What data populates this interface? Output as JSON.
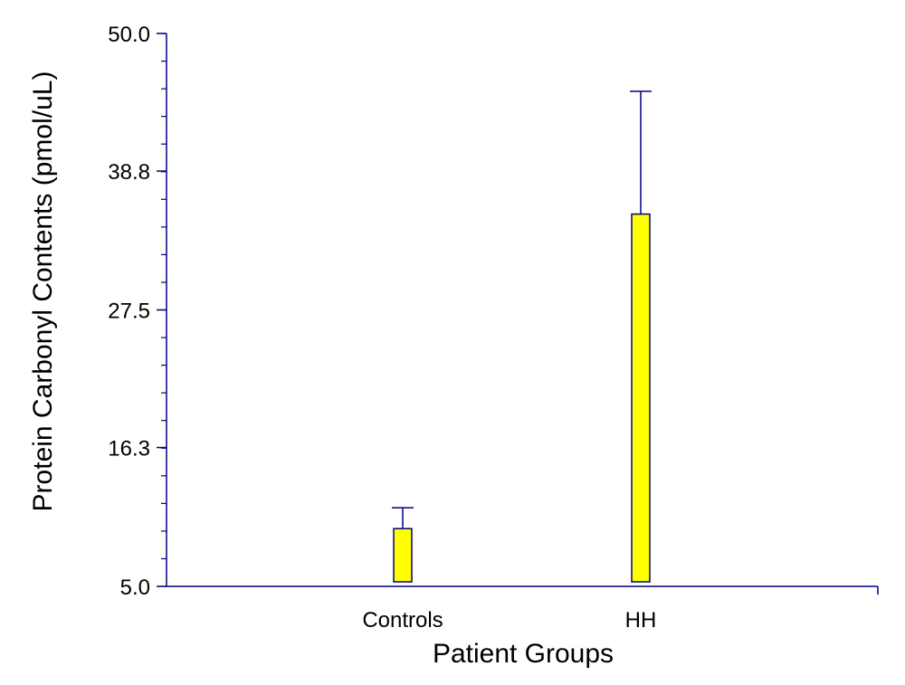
{
  "chart_data": {
    "type": "bar",
    "title": "",
    "xlabel": "Patient Groups",
    "ylabel": "Protein Carbonyl Contents (pmol/uL)",
    "categories": [
      "Controls",
      "HH"
    ],
    "values": [
      9.7,
      35.3
    ],
    "error_upper": [
      11.4,
      45.3
    ],
    "ylim": [
      5.0,
      50.0
    ],
    "yticks": [
      {
        "value": 5.0,
        "label": "5.0"
      },
      {
        "value": 16.3,
        "label": "16.3"
      },
      {
        "value": 27.5,
        "label": "27.5"
      },
      {
        "value": 38.8,
        "label": "38.8"
      },
      {
        "value": 50.0,
        "label": "50.0"
      }
    ],
    "y_minor_step": 2.25,
    "grid": false,
    "legend": "none",
    "colors": {
      "bar_fill": "#ffff00",
      "bar_edge": "#000080",
      "axis": "#000080"
    }
  }
}
